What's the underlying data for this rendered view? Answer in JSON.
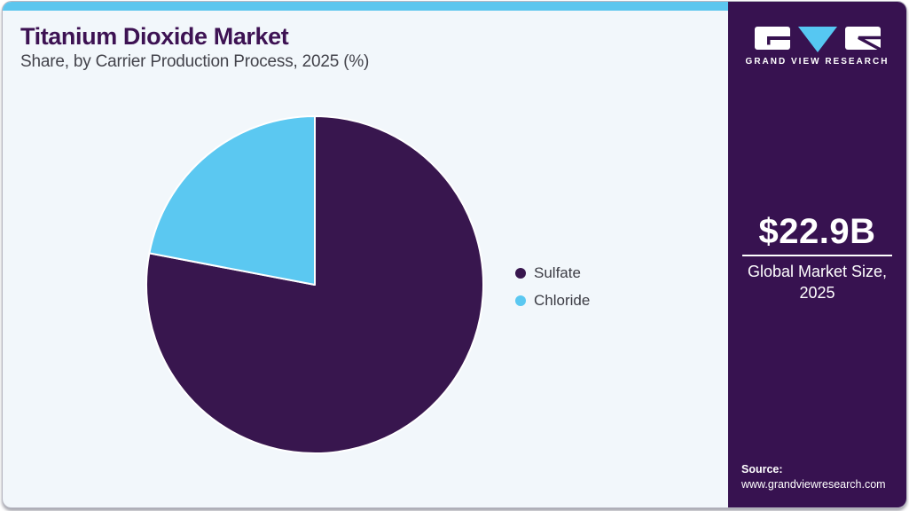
{
  "header": {
    "title": "Titanium Dioxide Market",
    "subtitle": "Share, by Carrier Production Process, 2025 (%)"
  },
  "chart_data": {
    "type": "pie",
    "title": "Titanium Dioxide Market Share, by Carrier Production Process, 2025 (%)",
    "categories": [
      "Sulfate",
      "Chloride"
    ],
    "values": [
      78,
      22
    ],
    "unit": "%",
    "colors": [
      "#38164E",
      "#5BC8F1"
    ],
    "slice_border_color": "#FFFFFF",
    "start_angle": "top",
    "direction": "clockwise",
    "legend_position": "right-middle",
    "labels_on_slices": false
  },
  "panel": {
    "brand": {
      "logo_text": "GRAND VIEW RESEARCH"
    },
    "market_size": {
      "value": "$22.9B",
      "label_line1": "Global Market Size,",
      "label_line2": "2025"
    },
    "source": {
      "label": "Source:",
      "url": "www.grandviewresearch.com"
    }
  },
  "theme": {
    "topbar_color": "#5CC6EE",
    "left_background": "#F2F7FB",
    "title_color": "#3D1253",
    "panel_background": "#371250",
    "logo_triangle_color": "#56C7F2"
  }
}
